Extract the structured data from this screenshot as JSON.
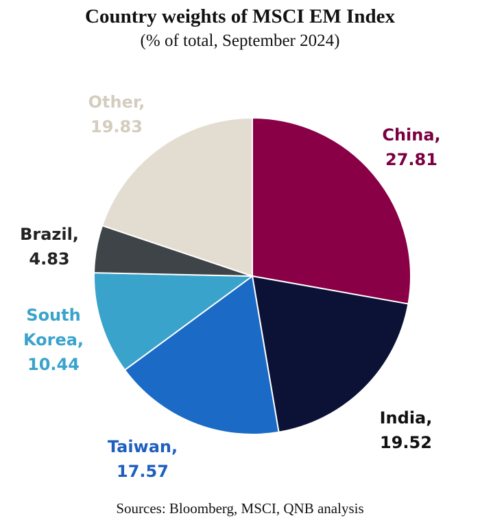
{
  "chart_data": {
    "type": "pie",
    "title": "Country weights of MSCI EM Index",
    "subtitle": "(% of total, September 2024)",
    "source": "Sources: Bloomberg, MSCI, QNB analysis",
    "slices": [
      {
        "name": "China",
        "value": 27.81,
        "value_label": "27.81",
        "color": "#8a0046",
        "label_color": "#7a0040",
        "label_lines": [
          "China,",
          "27.81"
        ]
      },
      {
        "name": "India",
        "value": 19.52,
        "value_label": "19.52",
        "color": "#0c1236",
        "label_color": "#111111",
        "label_lines": [
          "India,",
          "19.52"
        ]
      },
      {
        "name": "Taiwan",
        "value": 17.57,
        "value_label": "17.57",
        "color": "#1a6ac6",
        "label_color": "#1f5fc0",
        "label_lines": [
          "Taiwan,",
          "17.57"
        ]
      },
      {
        "name": "South Korea",
        "value": 10.44,
        "value_label": "10.44",
        "color": "#3aa3cc",
        "label_color": "#3aa3cc",
        "label_lines": [
          "South",
          "Korea,",
          "10.44"
        ]
      },
      {
        "name": "Brazil",
        "value": 4.83,
        "value_label": "4.83",
        "color": "#3e4447",
        "label_color": "#222222",
        "label_lines": [
          "Brazil,",
          "4.83"
        ]
      },
      {
        "name": "Other",
        "value": 19.83,
        "value_label": "19.83",
        "color": "#e3ddd1",
        "label_color": "#d4cdbf",
        "label_lines": [
          "Other,",
          "19.83"
        ]
      }
    ]
  }
}
